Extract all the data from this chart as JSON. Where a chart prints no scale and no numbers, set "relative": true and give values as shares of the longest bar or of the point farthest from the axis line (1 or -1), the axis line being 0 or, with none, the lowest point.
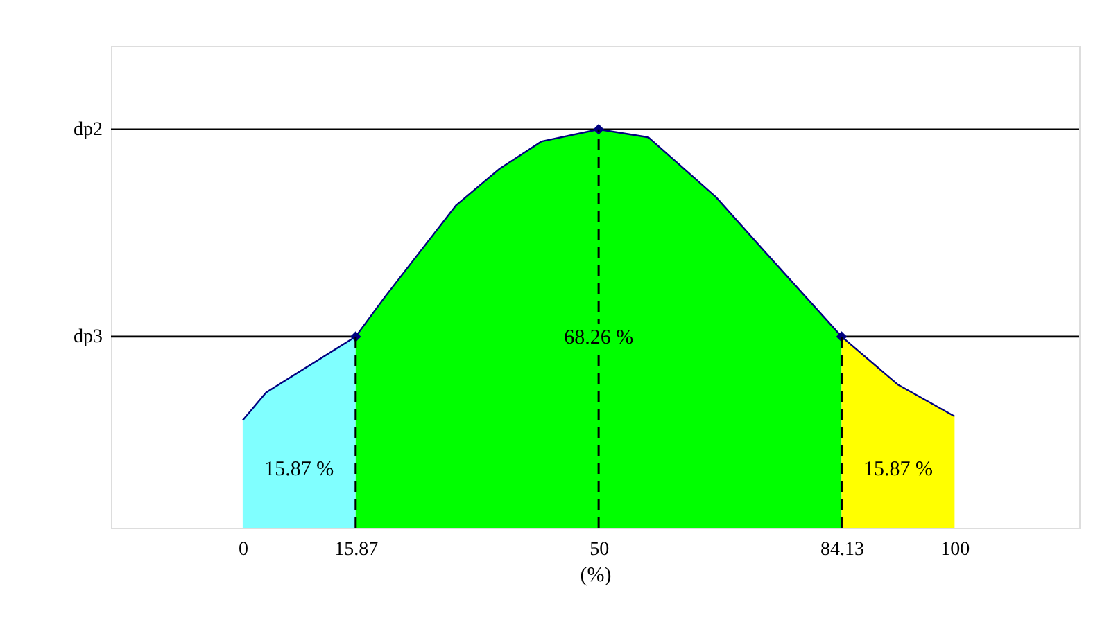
{
  "chart_data": {
    "type": "area",
    "relative": true,
    "xlabel": "(%)",
    "xlim": [
      -18.5,
      117.5
    ],
    "xticks": [
      0,
      15.87,
      50,
      84.13,
      100
    ],
    "grid": false,
    "series": [
      {
        "color": "#80ffff",
        "x": [
          0,
          3.3,
          15.87
        ],
        "values": [
          0.27,
          0.34,
          0.48
        ]
      },
      {
        "color": "#00ff00",
        "x": [
          15.87,
          20,
          30,
          36,
          42,
          50,
          57,
          66.5,
          73,
          84.13
        ],
        "values": [
          0.48,
          0.58,
          0.81,
          0.9,
          0.97,
          1.0,
          0.98,
          0.83,
          0.7,
          0.48
        ]
      },
      {
        "color": "#ffff00",
        "x": [
          84.13,
          92,
          100
        ],
        "values": [
          0.48,
          0.36,
          0.28
        ]
      },
      {
        "type": "line",
        "color": "#000080",
        "x": [
          0,
          3.3,
          15.87,
          20,
          30,
          36,
          42,
          50,
          57,
          66.5,
          73,
          84.13,
          92,
          100
        ],
        "values": [
          0.27,
          0.34,
          0.48,
          0.58,
          0.81,
          0.9,
          0.97,
          1.0,
          0.98,
          0.83,
          0.7,
          0.48,
          0.36,
          0.28
        ]
      },
      {
        "type": "scatter",
        "marker": "diamond",
        "color": "#000080",
        "x": [
          15.87,
          50,
          84.13
        ],
        "values": [
          0.48,
          1.0,
          0.48
        ]
      }
    ],
    "ref_lines": [
      {
        "axis": "y",
        "value": 1.0,
        "label": "dp2",
        "color": "#000000"
      },
      {
        "axis": "y",
        "value": 0.48,
        "label": "dp3",
        "color": "#000000"
      },
      {
        "axis": "x",
        "value": 15.87,
        "color": "#000000",
        "line_style": "dashed"
      },
      {
        "axis": "x",
        "value": 50,
        "color": "#000000",
        "line_style": "dashed"
      },
      {
        "axis": "x",
        "value": 84.13,
        "color": "#000000",
        "line_style": "dashed"
      }
    ],
    "annotations": [
      "15.87 %",
      {
        "text": "68.26 %",
        "x": 50,
        "y": 0.48
      },
      "15.87 %"
    ]
  }
}
